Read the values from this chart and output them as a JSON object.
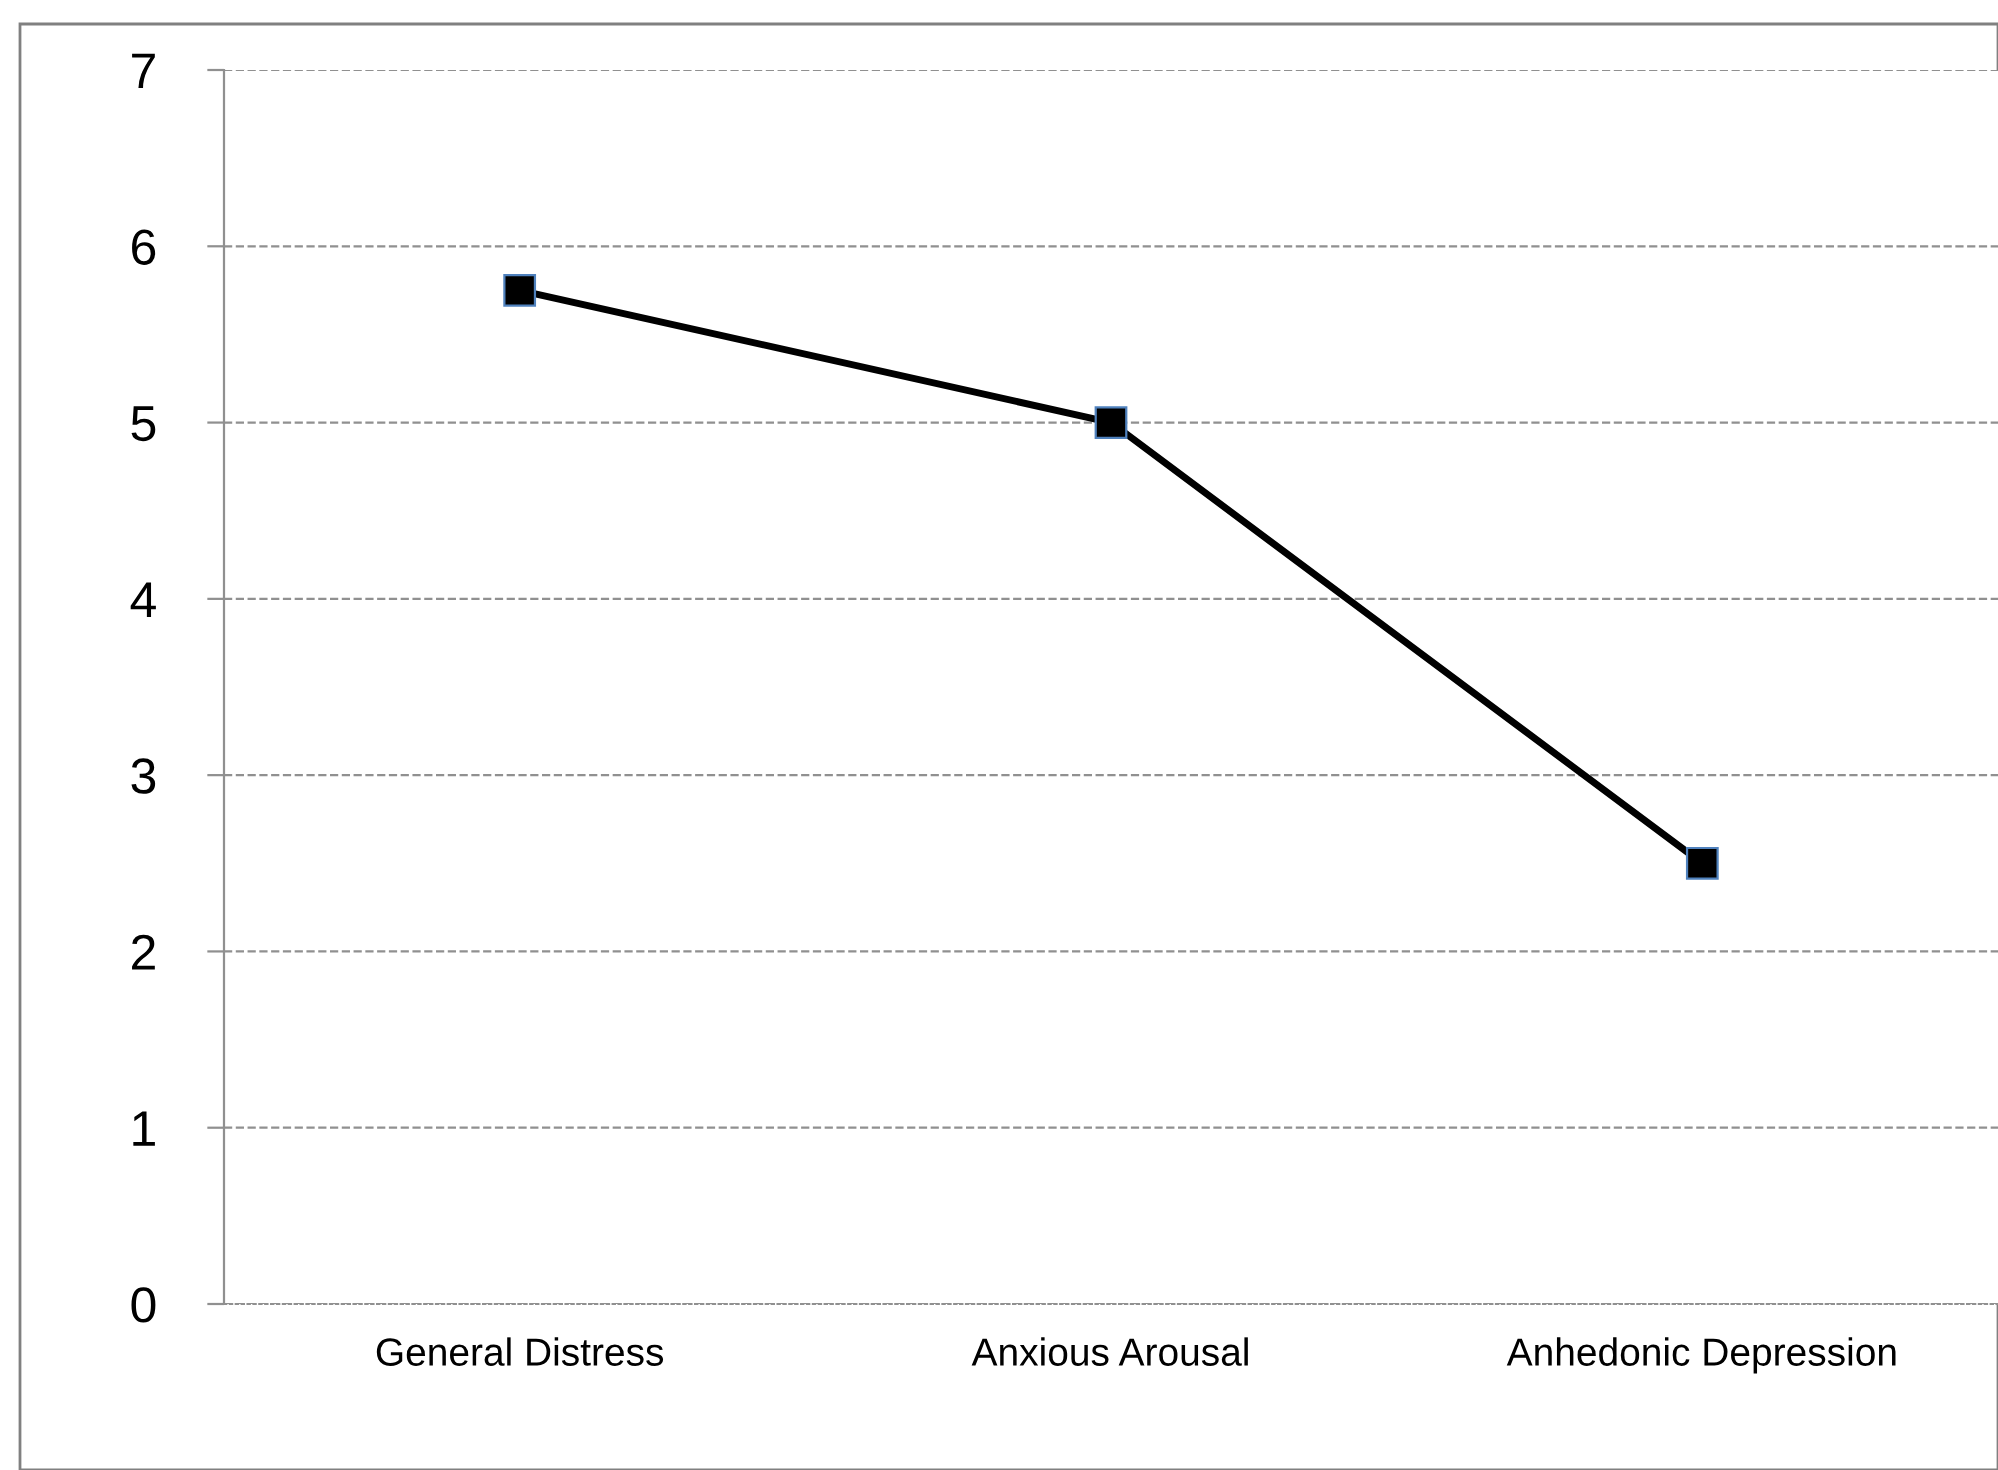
{
  "chart_data": {
    "type": "line",
    "categories": [
      "General Distress",
      "Anxious Arousal",
      "Anhedonic Depression"
    ],
    "series": [
      {
        "color": "#000000",
        "values": [
          5.75,
          5.0,
          2.5
        ]
      }
    ],
    "ylim": [
      0,
      7
    ],
    "yticks": [
      0,
      1,
      2,
      3,
      4,
      5,
      6,
      7
    ],
    "grid": "y",
    "marker": "square",
    "line_style": "solid"
  }
}
